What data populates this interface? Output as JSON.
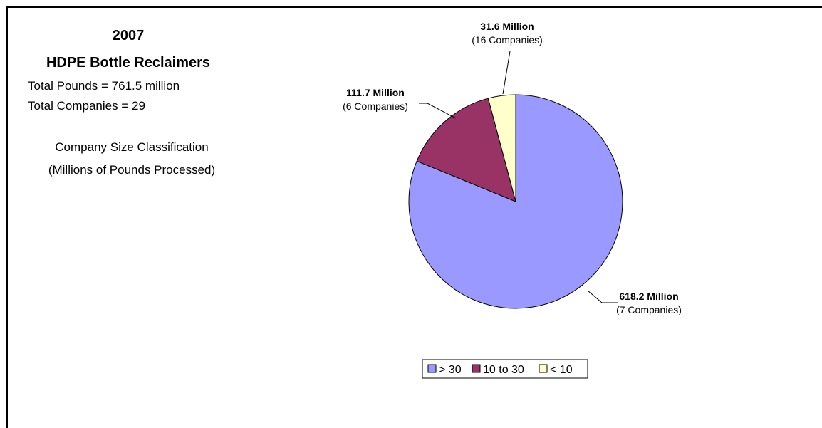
{
  "header": {
    "year": "2007",
    "title": "HDPE Bottle Reclaimers",
    "total_pounds": "Total Pounds = 761.5 million",
    "total_companies": "Total Companies = 29",
    "classification_line1": "Company Size Classification",
    "classification_line2": "(Millions of Pounds Processed)"
  },
  "chart_data": {
    "type": "pie",
    "title": "2007 HDPE Bottle Reclaimers",
    "categories": [
      "> 30",
      "10 to 30",
      "< 10"
    ],
    "values": [
      618.2,
      111.7,
      31.6
    ],
    "value_labels": [
      "618.2 Million",
      "111.7 Million",
      "31.6 Million"
    ],
    "count_labels": [
      "(7 Companies)",
      "(6 Companies)",
      "(16 Companies)"
    ],
    "colors": [
      "#9999ff",
      "#993366",
      "#ffffcc"
    ],
    "legend_position": "bottom"
  }
}
